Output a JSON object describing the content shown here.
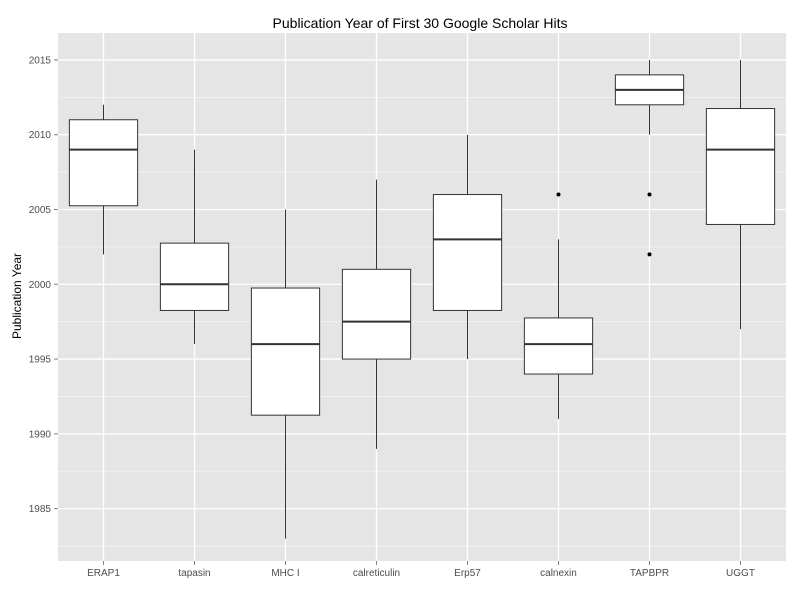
{
  "chart_data": {
    "type": "box",
    "title": "Publication Year of First 30 Google Scholar Hits",
    "xlabel": "",
    "ylabel": "Publication Year",
    "ylim": [
      1981.5,
      2016.8
    ],
    "yticks": [
      1985,
      1990,
      1995,
      2000,
      2005,
      2010,
      2015
    ],
    "grid": true,
    "legend": "none",
    "colors": {
      "panel": "#e5e5e5",
      "grid_major": "#ffffff",
      "grid_minor": "#f2f2f2",
      "box_fill": "#ffffff",
      "box_stroke": "#333333"
    },
    "categories": [
      "ERAP1",
      "tapasin",
      "MHC I",
      "calreticulin",
      "Erp57",
      "calnexin",
      "TAPBPR",
      "UGGT"
    ],
    "boxes": [
      {
        "category": "ERAP1",
        "min": 2002,
        "q1": 2005.25,
        "median": 2009,
        "q3": 2011,
        "max": 2012,
        "outliers": []
      },
      {
        "category": "tapasin",
        "min": 1996,
        "q1": 1998.25,
        "median": 2000,
        "q3": 2002.75,
        "max": 2009,
        "outliers": []
      },
      {
        "category": "MHC I",
        "min": 1983,
        "q1": 1991.25,
        "median": 1996,
        "q3": 1999.75,
        "max": 2005,
        "outliers": []
      },
      {
        "category": "calreticulin",
        "min": 1989,
        "q1": 1995,
        "median": 1997.5,
        "q3": 2001,
        "max": 2007,
        "outliers": []
      },
      {
        "category": "Erp57",
        "min": 1995,
        "q1": 1998.25,
        "median": 2003,
        "q3": 2006,
        "max": 2010,
        "outliers": []
      },
      {
        "category": "calnexin",
        "min": 1991,
        "q1": 1994,
        "median": 1996,
        "q3": 1997.75,
        "max": 2003,
        "outliers": [
          2006
        ]
      },
      {
        "category": "TAPBPR",
        "min": 2010,
        "q1": 2012,
        "median": 2013,
        "q3": 2014,
        "max": 2015,
        "outliers": [
          2006,
          2002
        ]
      },
      {
        "category": "UGGT",
        "min": 1997,
        "q1": 2004,
        "median": 2009,
        "q3": 2011.75,
        "max": 2015,
        "outliers": []
      }
    ]
  }
}
